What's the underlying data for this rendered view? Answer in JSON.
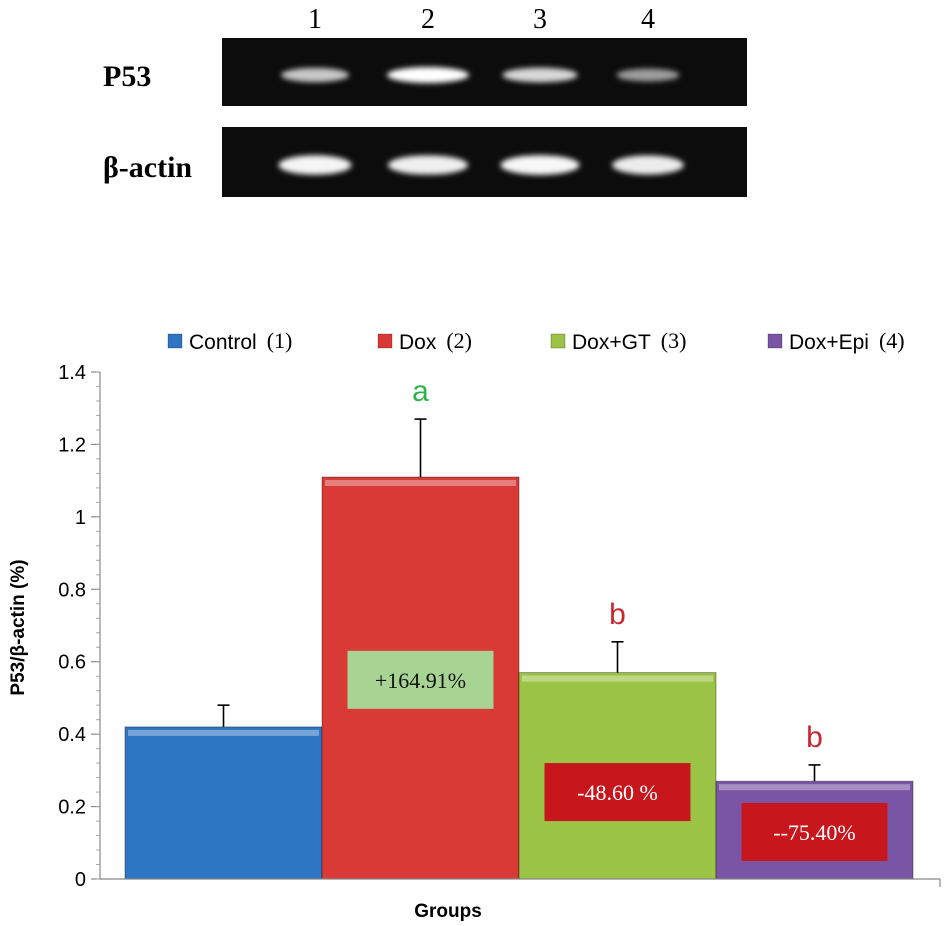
{
  "blot": {
    "lanes": [
      "1",
      "2",
      "3",
      "4"
    ],
    "rows": [
      {
        "label": "P53",
        "intensities": [
          0.72,
          1.0,
          0.8,
          0.5
        ]
      },
      {
        "label": "β-actin",
        "intensities": [
          0.95,
          0.92,
          0.96,
          0.9
        ]
      }
    ]
  },
  "chart_data": {
    "type": "bar",
    "xlabel": "Groups",
    "ylabel": "P53/β-actin (%)",
    "ylim": [
      0,
      1.4
    ],
    "yticks": [
      "0",
      "0.2",
      "0.4",
      "0.6",
      "0.8",
      "1",
      "1.2",
      "1.4"
    ],
    "grid": false,
    "legend_position": "top",
    "series": [
      {
        "name": "Control",
        "tag": "(1)",
        "value": 0.42,
        "error": 0.06,
        "color": "#2e75c4",
        "letter": "",
        "letter_color": "",
        "label_text": "",
        "label_value": null,
        "label_bg": "",
        "label_color": ""
      },
      {
        "name": "Dox",
        "tag": "(2)",
        "value": 1.11,
        "error": 0.16,
        "color": "#d93a36",
        "letter": "a",
        "letter_color": "#2db34a",
        "label_text": "+164.91%",
        "label_value": 0.55,
        "label_bg": "#a7d393",
        "label_color": "#111111"
      },
      {
        "name": "Dox+GT",
        "tag": "(3)",
        "value": 0.57,
        "error": 0.085,
        "color": "#9bc446",
        "letter": "b",
        "letter_color": "#c8272d",
        "label_text": "-48.60 %",
        "label_value": 0.24,
        "label_bg": "#c8161d",
        "label_color": "#ffffff"
      },
      {
        "name": "Dox+Epi",
        "tag": "(4)",
        "value": 0.27,
        "error": 0.045,
        "color": "#7a55a5",
        "letter": "b",
        "letter_color": "#c8272d",
        "label_text": "--75.40%",
        "label_value": 0.13,
        "label_bg": "#c8161d",
        "label_color": "#ffffff"
      }
    ]
  }
}
